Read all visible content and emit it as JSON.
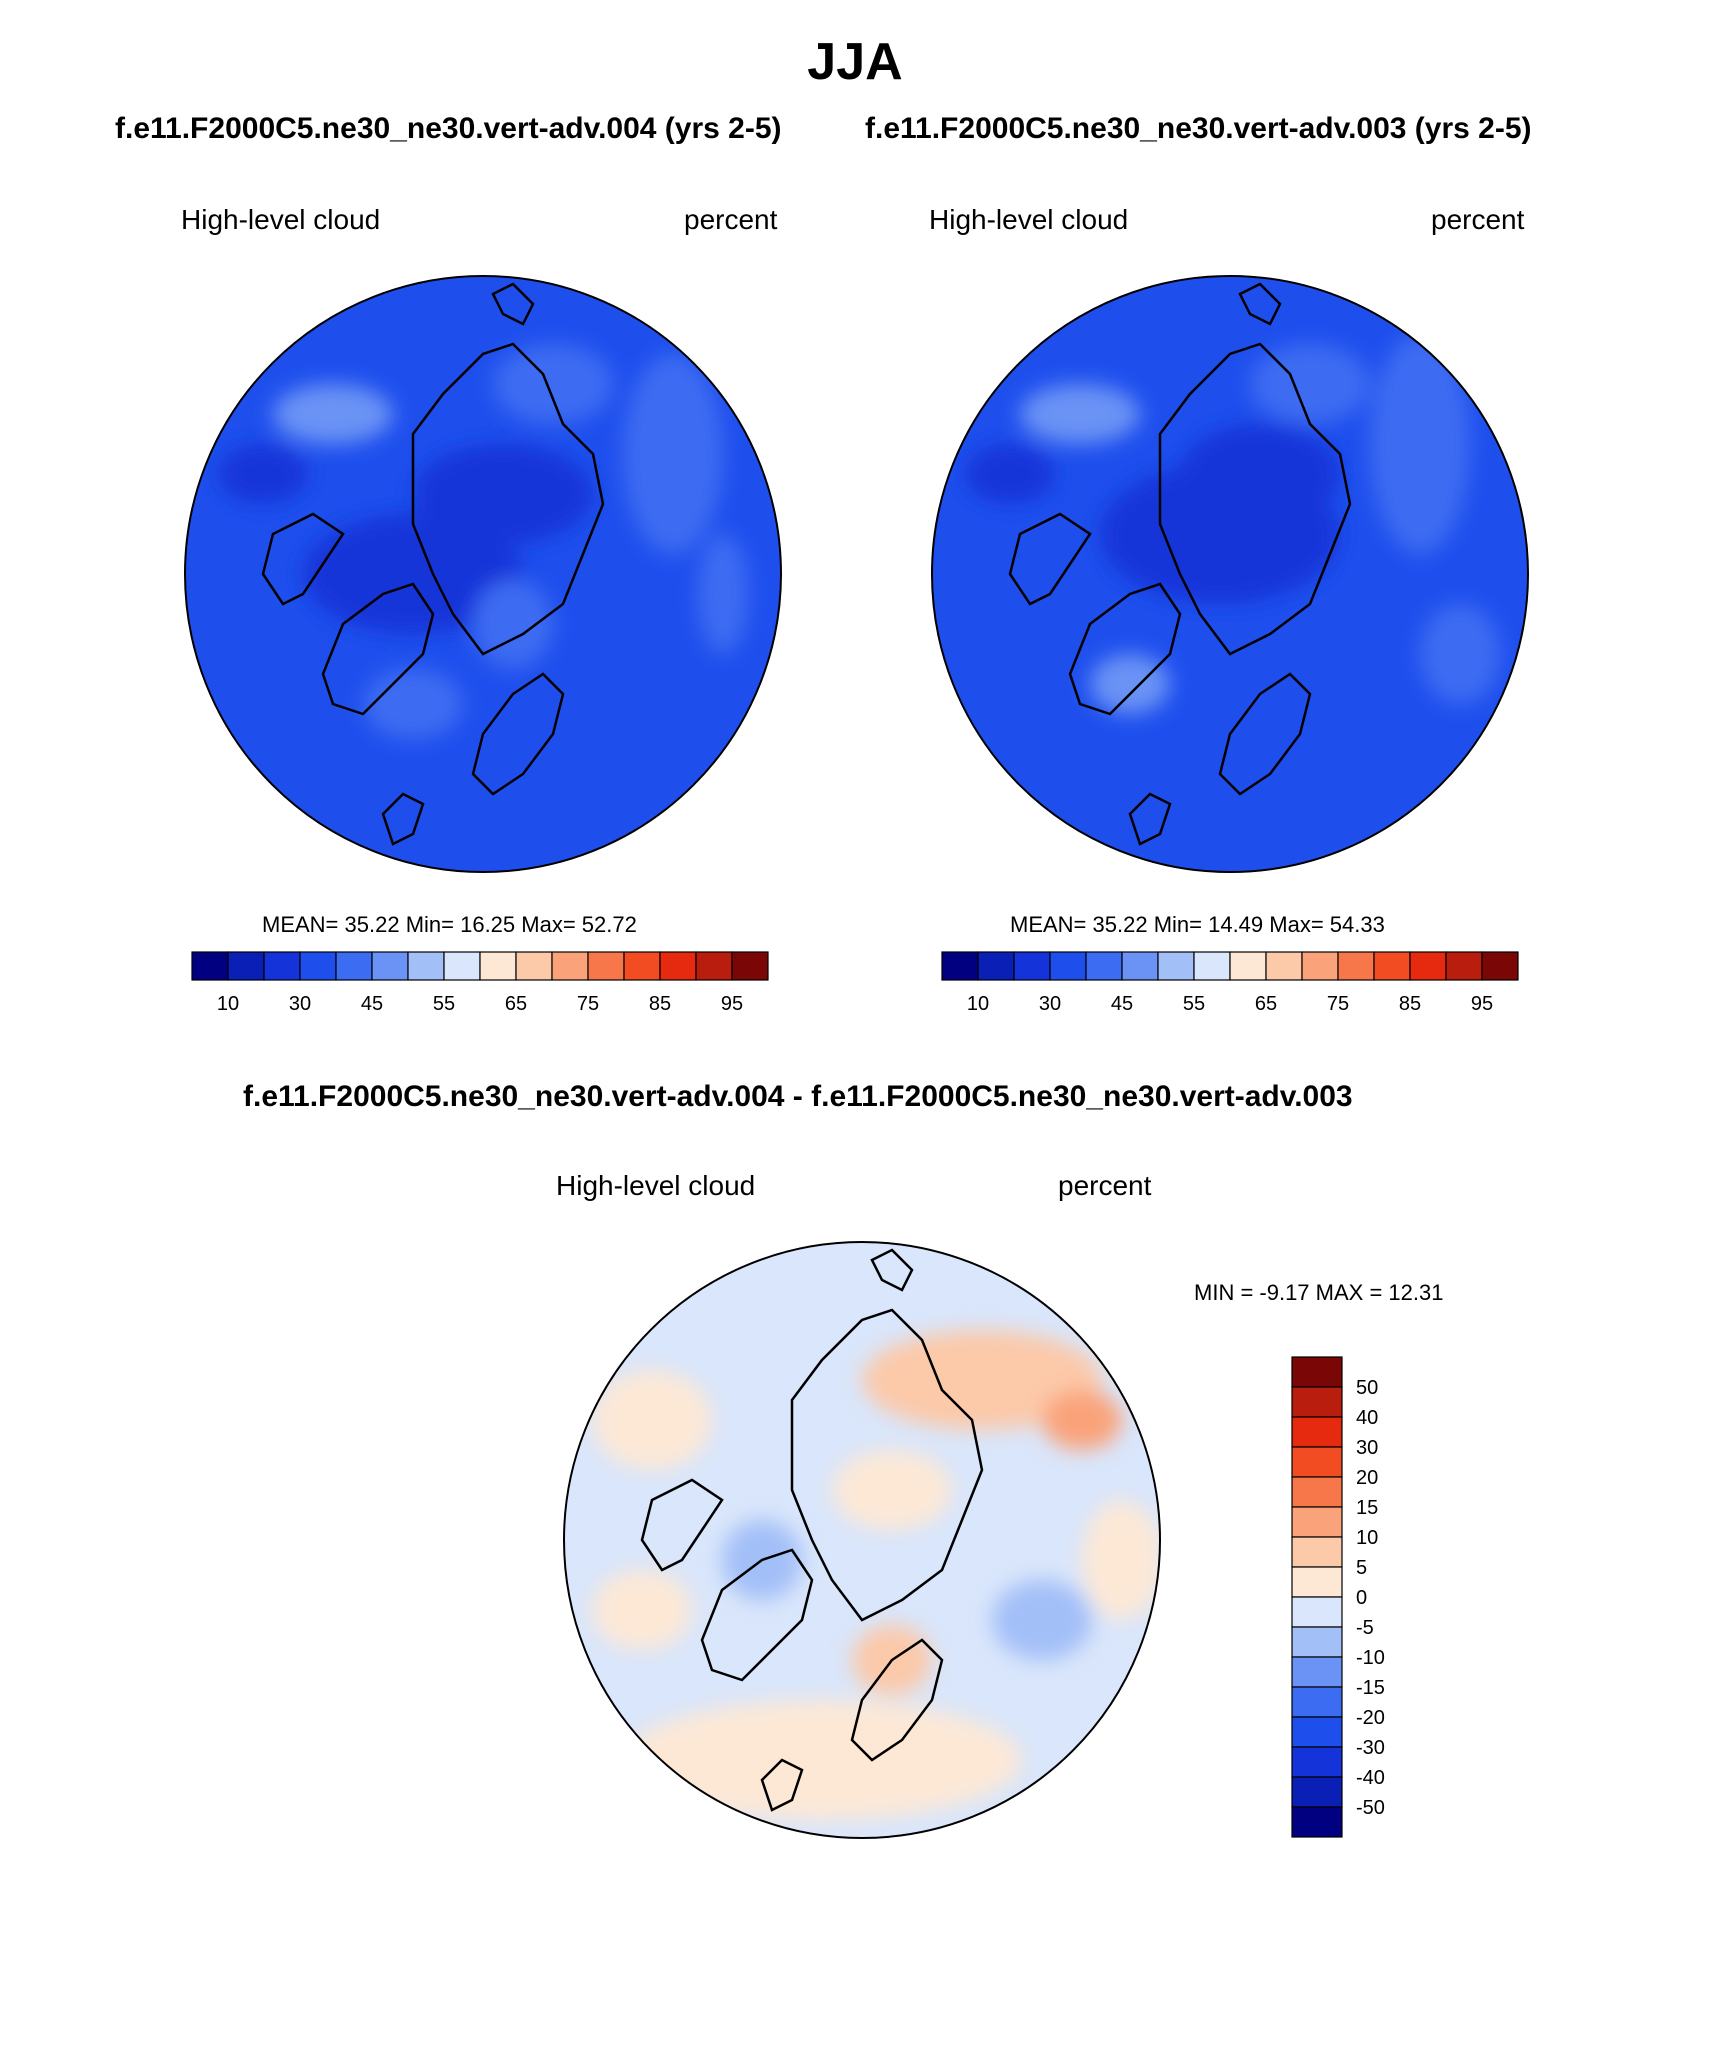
{
  "header": {
    "title": "JJA",
    "case_a": "f.e11.F2000C5.ne30_ne30.vert-adv.004 (yrs 2-5)",
    "case_b": "f.e11.F2000C5.ne30_ne30.vert-adv.003 (yrs 2-5)",
    "diff_title": "f.e11.F2000C5.ne30_ne30.vert-adv.004 - f.e11.F2000C5.ne30_ne30.vert-adv.003"
  },
  "panels": {
    "left": {
      "variable": "High-level cloud",
      "units": "percent",
      "stats": "MEAN=  35.22  Min=  16.25  Max=  52.72"
    },
    "right": {
      "variable": "High-level cloud",
      "units": "percent",
      "stats": "MEAN=  35.22  Min=  14.49  Max=  54.33"
    },
    "diff": {
      "variable": "High-level cloud",
      "units": "percent",
      "stats": "MIN =  -9.17 MAX =  12.31"
    }
  },
  "colorbars": {
    "abs_colors": [
      "#000080",
      "#0a1fb5",
      "#1434d9",
      "#1e4fed",
      "#3c6cf2",
      "#6a93f5",
      "#a3bff8",
      "#d9e6fb",
      "#fde8d6",
      "#fcc9a9",
      "#faa37a",
      "#f7774b",
      "#f24c23",
      "#e52a10",
      "#b81d0d",
      "#7a0606"
    ],
    "abs_ticks": [
      "10",
      "30",
      "45",
      "55",
      "65",
      "75",
      "85",
      "95"
    ],
    "diff_colors": [
      "#000080",
      "#0a1fb5",
      "#1434d9",
      "#1e4fed",
      "#3c6cf2",
      "#6a93f5",
      "#a3bff8",
      "#d9e6fb",
      "#fde8d6",
      "#fcc9a9",
      "#faa37a",
      "#f7774b",
      "#f24c23",
      "#e52a10",
      "#b81d0d",
      "#7a0606"
    ],
    "diff_ticks": [
      "50",
      "40",
      "30",
      "20",
      "15",
      "10",
      "5",
      "0",
      "-5",
      "-10",
      "-15",
      "-20",
      "-30",
      "-40",
      "-50"
    ]
  }
}
